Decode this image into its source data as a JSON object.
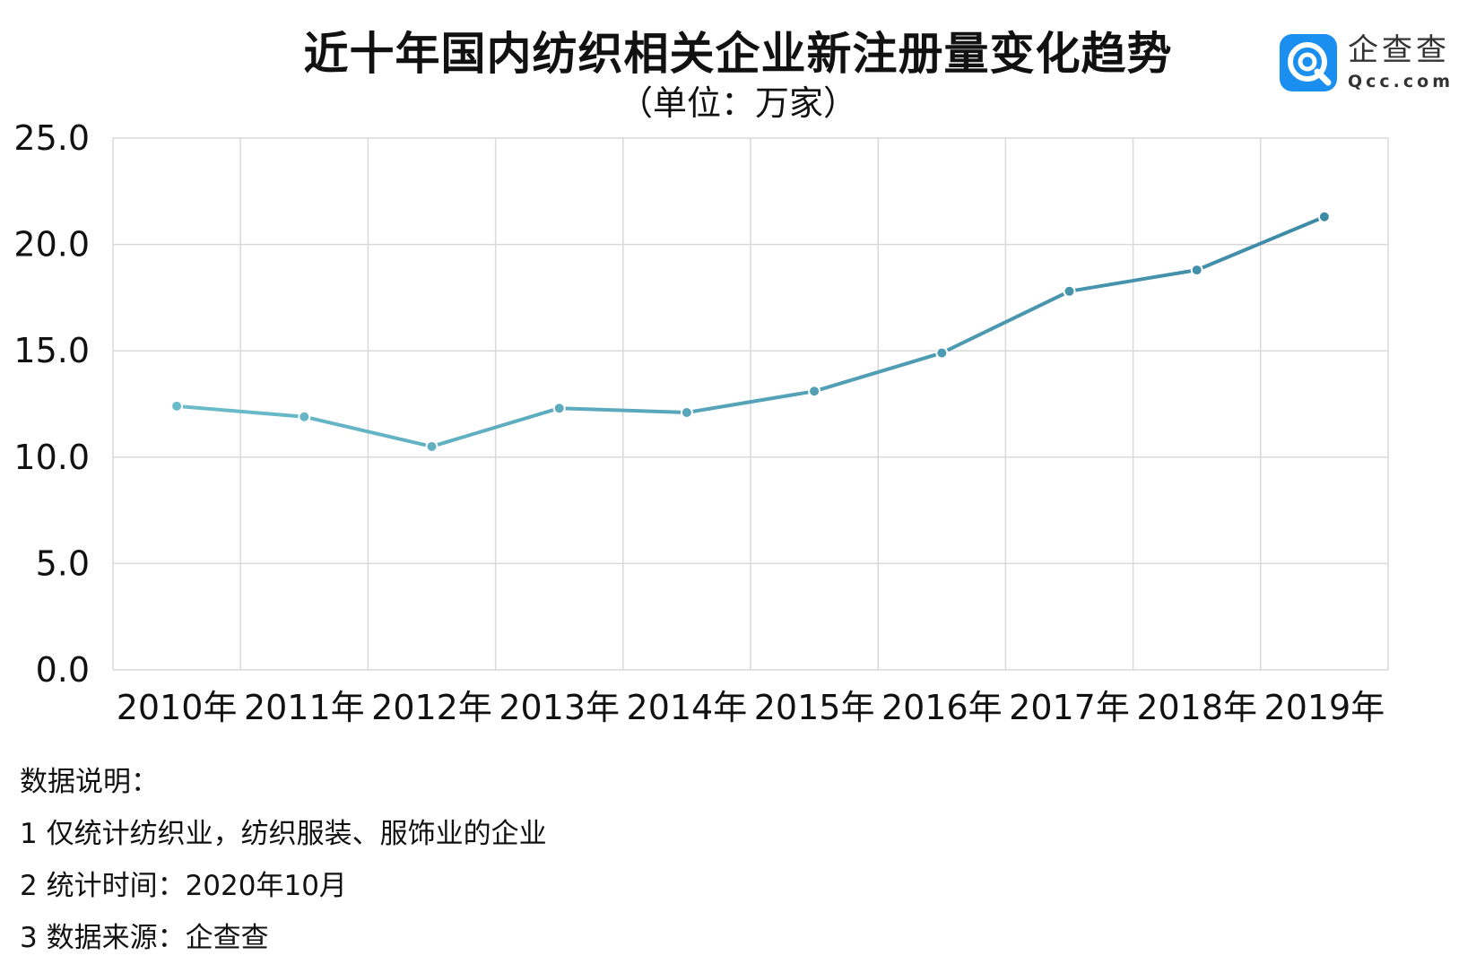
{
  "header": {
    "title": "近十年国内纺织相关企业新注册量变化趋势",
    "unit": "（单位：万家）"
  },
  "brand": {
    "name": "企查查",
    "url": "Qcc.com",
    "color": "#1a8ff0"
  },
  "chart_data": {
    "type": "line",
    "categories": [
      "2010年",
      "2011年",
      "2012年",
      "2013年",
      "2014年",
      "2015年",
      "2016年",
      "2017年",
      "2018年",
      "2019年"
    ],
    "series": [
      {
        "values": [
          12.4,
          11.9,
          10.5,
          12.3,
          12.1,
          13.1,
          14.9,
          17.8,
          18.8,
          21.3
        ],
        "color_start": "#6bbccb",
        "color_end": "#3d8aa5"
      }
    ],
    "ylim": [
      0,
      25
    ],
    "yticks": [
      "0.0",
      "5.0",
      "10.0",
      "15.0",
      "20.0",
      "25.0"
    ],
    "grid": true,
    "legend": "none"
  },
  "notes": {
    "heading": "数据说明：",
    "lines": [
      "1 仅统计纺织业，纺织服装、服饰业的企业",
      "2 统计时间：2020年10月",
      "3 数据来源：企查查"
    ]
  }
}
